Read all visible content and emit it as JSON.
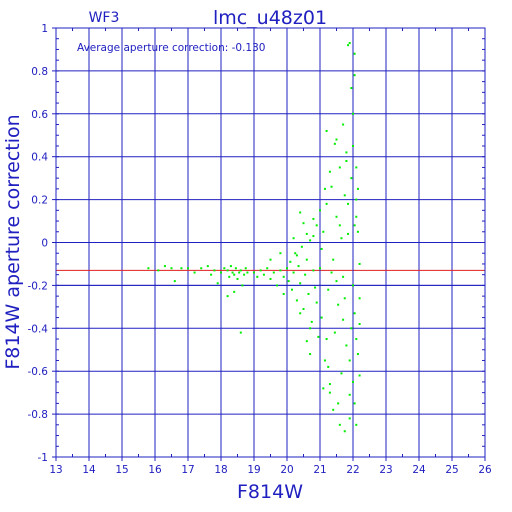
{
  "chart_data": {
    "type": "scatter",
    "title": "lmc_u48z01",
    "panel_label": "WF3",
    "annotation": "Average aperture correction: -0.130",
    "xlabel": "F814W",
    "ylabel": "F814W aperture correction",
    "xlim": [
      13,
      26
    ],
    "ylim": [
      -1,
      1
    ],
    "xticks": [
      "13",
      "14",
      "15",
      "16",
      "17",
      "18",
      "19",
      "20",
      "21",
      "22",
      "23",
      "24",
      "25",
      "26"
    ],
    "yticks": [
      "-1",
      "-0.8",
      "-0.6",
      "-0.4",
      "-0.2",
      "0",
      "0.2",
      "0.4",
      "0.6",
      "0.8",
      "1"
    ],
    "grid": true,
    "reference_lines": [
      {
        "axis": "y",
        "value": -0.13,
        "color": "#e02020"
      },
      {
        "axis": "y",
        "value": -0.2,
        "color": "#2020c0"
      },
      {
        "axis": "x",
        "value": 21,
        "color": "#2020c0"
      },
      {
        "axis": "x",
        "value": 22,
        "color": "#2020c0"
      }
    ],
    "colors": {
      "axes": "#2020c0",
      "points": "#00ee00",
      "mean_line": "#e02020"
    },
    "series": [
      {
        "points": [
          [
            15.8,
            -0.12
          ],
          [
            16.1,
            -0.13
          ],
          [
            16.3,
            -0.11
          ],
          [
            16.5,
            -0.12
          ],
          [
            16.6,
            -0.18
          ],
          [
            16.8,
            -0.12
          ],
          [
            17.0,
            -0.12
          ],
          [
            17.2,
            -0.14
          ],
          [
            17.4,
            -0.12
          ],
          [
            17.6,
            -0.11
          ],
          [
            17.7,
            -0.15
          ],
          [
            17.8,
            -0.13
          ],
          [
            17.9,
            -0.19
          ],
          [
            18.0,
            -0.14
          ],
          [
            18.1,
            -0.12
          ],
          [
            18.2,
            -0.13
          ],
          [
            18.25,
            -0.16
          ],
          [
            18.3,
            -0.11
          ],
          [
            18.35,
            -0.14
          ],
          [
            18.4,
            -0.15
          ],
          [
            18.45,
            -0.12
          ],
          [
            18.5,
            -0.17
          ],
          [
            18.55,
            -0.14
          ],
          [
            18.6,
            -0.13
          ],
          [
            18.65,
            -0.2
          ],
          [
            18.7,
            -0.15
          ],
          [
            18.75,
            -0.12
          ],
          [
            18.8,
            -0.14
          ],
          [
            18.4,
            -0.23
          ],
          [
            18.6,
            -0.42
          ],
          [
            18.2,
            -0.25
          ],
          [
            19.0,
            -0.14
          ],
          [
            19.1,
            -0.16
          ],
          [
            19.2,
            -0.13
          ],
          [
            19.3,
            -0.15
          ],
          [
            19.4,
            -0.12
          ],
          [
            19.5,
            -0.17
          ],
          [
            19.6,
            -0.14
          ],
          [
            19.7,
            -0.2
          ],
          [
            19.8,
            -0.13
          ],
          [
            19.9,
            -0.16
          ],
          [
            19.5,
            -0.08
          ],
          [
            19.8,
            -0.05
          ],
          [
            19.9,
            -0.24
          ],
          [
            20.0,
            -0.12
          ],
          [
            20.05,
            -0.18
          ],
          [
            20.1,
            -0.09
          ],
          [
            20.15,
            -0.22
          ],
          [
            20.2,
            -0.14
          ],
          [
            20.25,
            -0.05
          ],
          [
            20.3,
            -0.27
          ],
          [
            20.35,
            -0.11
          ],
          [
            20.4,
            -0.19
          ],
          [
            20.45,
            -0.02
          ],
          [
            20.5,
            -0.31
          ],
          [
            20.55,
            -0.15
          ],
          [
            20.6,
            -0.08
          ],
          [
            20.65,
            -0.24
          ],
          [
            20.7,
            0.01
          ],
          [
            20.75,
            -0.37
          ],
          [
            20.8,
            -0.13
          ],
          [
            20.85,
            -0.21
          ],
          [
            20.9,
            0.08
          ],
          [
            20.95,
            -0.44
          ],
          [
            20.3,
            -0.06
          ],
          [
            20.4,
            -0.33
          ],
          [
            20.6,
            0.04
          ],
          [
            20.7,
            -0.4
          ],
          [
            20.8,
            0.11
          ],
          [
            20.9,
            -0.28
          ],
          [
            20.5,
            0.09
          ],
          [
            20.6,
            -0.46
          ],
          [
            20.2,
            0.02
          ],
          [
            20.4,
            0.14
          ],
          [
            20.7,
            -0.52
          ],
          [
            20.8,
            0.03
          ],
          [
            21.0,
            -0.12
          ],
          [
            21.05,
            -0.35
          ],
          [
            21.1,
            0.05
          ],
          [
            21.15,
            -0.55
          ],
          [
            21.2,
            0.18
          ],
          [
            21.25,
            -0.22
          ],
          [
            21.3,
            -0.66
          ],
          [
            21.35,
            0.26
          ],
          [
            21.4,
            -0.08
          ],
          [
            21.45,
            -0.42
          ],
          [
            21.5,
            0.12
          ],
          [
            21.55,
            -0.29
          ],
          [
            21.6,
            0.35
          ],
          [
            21.65,
            -0.61
          ],
          [
            21.7,
            -0.16
          ],
          [
            21.75,
            0.22
          ],
          [
            21.8,
            -0.48
          ],
          [
            21.85,
            0.04
          ],
          [
            21.9,
            -0.71
          ],
          [
            21.95,
            0.3
          ],
          [
            21.0,
            0.15
          ],
          [
            21.1,
            -0.68
          ],
          [
            21.2,
            -0.45
          ],
          [
            21.3,
            0.33
          ],
          [
            21.4,
            -0.78
          ],
          [
            21.5,
            -0.18
          ],
          [
            21.6,
            0.08
          ],
          [
            21.7,
            -0.36
          ],
          [
            21.8,
            0.42
          ],
          [
            21.9,
            -0.55
          ],
          [
            21.05,
            -0.03
          ],
          [
            21.15,
            0.25
          ],
          [
            21.25,
            -0.58
          ],
          [
            21.35,
            -0.14
          ],
          [
            21.45,
            0.46
          ],
          [
            21.55,
            -0.75
          ],
          [
            21.65,
            0.02
          ],
          [
            21.75,
            -0.26
          ],
          [
            21.85,
            0.18
          ],
          [
            21.95,
            -0.4
          ],
          [
            21.2,
            0.52
          ],
          [
            21.5,
            0.48
          ],
          [
            21.7,
            0.55
          ],
          [
            21.8,
            0.38
          ],
          [
            21.6,
            -0.85
          ],
          [
            21.75,
            -0.88
          ],
          [
            21.3,
            -0.7
          ],
          [
            21.9,
            -0.82
          ],
          [
            21.85,
            0.92
          ],
          [
            21.9,
            0.93
          ],
          [
            21.95,
            0.72
          ],
          [
            22.0,
            -0.2
          ],
          [
            22.05,
            0.08
          ],
          [
            22.1,
            -0.45
          ],
          [
            22.15,
            0.25
          ],
          [
            22.2,
            -0.62
          ],
          [
            22.0,
            0.45
          ],
          [
            22.05,
            -0.33
          ],
          [
            22.1,
            0.12
          ],
          [
            22.15,
            -0.52
          ],
          [
            22.2,
            -0.1
          ],
          [
            22.1,
            0.35
          ],
          [
            22.05,
            -0.75
          ],
          [
            22.0,
            0.6
          ],
          [
            22.2,
            -0.38
          ],
          [
            22.1,
            -0.85
          ],
          [
            22.05,
            0.78
          ],
          [
            22.15,
            0.05
          ],
          [
            22.2,
            -0.26
          ],
          [
            22.0,
            -0.65
          ],
          [
            22.1,
            0.2
          ],
          [
            22.05,
            0.88
          ]
        ]
      }
    ]
  }
}
